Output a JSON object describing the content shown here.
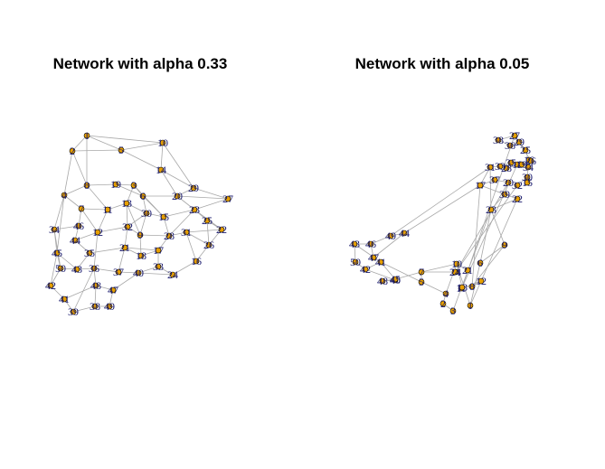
{
  "panels": [
    {
      "title": "Network with alpha 0.33",
      "nodes": [
        {
          "id": "1"
        },
        {
          "id": "2"
        },
        {
          "id": "3"
        },
        {
          "id": "4"
        },
        {
          "id": "5"
        },
        {
          "id": "6"
        },
        {
          "id": "7"
        },
        {
          "id": "8"
        },
        {
          "id": "9"
        },
        {
          "id": "10"
        },
        {
          "id": "11"
        },
        {
          "id": "12"
        },
        {
          "id": "13"
        },
        {
          "id": "14"
        },
        {
          "id": "15"
        },
        {
          "id": "16"
        },
        {
          "id": "17"
        },
        {
          "id": "18"
        },
        {
          "id": "19"
        },
        {
          "id": "20"
        },
        {
          "id": "21"
        },
        {
          "id": "22"
        },
        {
          "id": "23"
        },
        {
          "id": "24"
        },
        {
          "id": "25"
        },
        {
          "id": "26"
        },
        {
          "id": "27"
        },
        {
          "id": "28"
        },
        {
          "id": "29"
        },
        {
          "id": "30"
        },
        {
          "id": "31"
        },
        {
          "id": "32"
        },
        {
          "id": "33"
        },
        {
          "id": "34"
        },
        {
          "id": "35"
        },
        {
          "id": "36"
        },
        {
          "id": "37"
        },
        {
          "id": "38"
        },
        {
          "id": "39"
        },
        {
          "id": "40"
        },
        {
          "id": "41"
        },
        {
          "id": "42"
        },
        {
          "id": "43"
        },
        {
          "id": "44"
        },
        {
          "id": "45"
        },
        {
          "id": "46"
        },
        {
          "id": "47"
        },
        {
          "id": "48"
        },
        {
          "id": "49"
        },
        {
          "id": "50"
        }
      ],
      "edges": [
        [
          "1",
          "2"
        ],
        [
          "1",
          "5"
        ],
        [
          "1",
          "8"
        ],
        [
          "1",
          "10"
        ],
        [
          "2",
          "4"
        ],
        [
          "2",
          "5"
        ],
        [
          "5",
          "10"
        ],
        [
          "5",
          "14"
        ],
        [
          "10",
          "14"
        ],
        [
          "14",
          "29"
        ],
        [
          "10",
          "29"
        ],
        [
          "14",
          "20"
        ],
        [
          "4",
          "8"
        ],
        [
          "4",
          "7"
        ],
        [
          "4",
          "34"
        ],
        [
          "8",
          "19"
        ],
        [
          "8",
          "11"
        ],
        [
          "19",
          "3"
        ],
        [
          "3",
          "6"
        ],
        [
          "3",
          "13"
        ],
        [
          "6",
          "20"
        ],
        [
          "20",
          "29"
        ],
        [
          "20",
          "27"
        ],
        [
          "29",
          "27"
        ],
        [
          "27",
          "23"
        ],
        [
          "23",
          "22"
        ],
        [
          "23",
          "25"
        ],
        [
          "25",
          "22"
        ],
        [
          "25",
          "26"
        ],
        [
          "22",
          "26"
        ],
        [
          "6",
          "30"
        ],
        [
          "13",
          "30"
        ],
        [
          "30",
          "15"
        ],
        [
          "15",
          "23"
        ],
        [
          "15",
          "28"
        ],
        [
          "28",
          "31"
        ],
        [
          "31",
          "26"
        ],
        [
          "31",
          "16"
        ],
        [
          "16",
          "24"
        ],
        [
          "24",
          "33"
        ],
        [
          "33",
          "17"
        ],
        [
          "17",
          "18"
        ],
        [
          "18",
          "9"
        ],
        [
          "9",
          "32"
        ],
        [
          "32",
          "13"
        ],
        [
          "32",
          "21"
        ],
        [
          "21",
          "35"
        ],
        [
          "35",
          "43"
        ],
        [
          "43",
          "50"
        ],
        [
          "50",
          "45"
        ],
        [
          "45",
          "34"
        ],
        [
          "34",
          "46"
        ],
        [
          "46",
          "44"
        ],
        [
          "44",
          "12"
        ],
        [
          "12",
          "11"
        ],
        [
          "11",
          "7"
        ],
        [
          "7",
          "46"
        ],
        [
          "12",
          "32"
        ],
        [
          "21",
          "37"
        ],
        [
          "37",
          "36"
        ],
        [
          "36",
          "43"
        ],
        [
          "37",
          "40"
        ],
        [
          "40",
          "33"
        ],
        [
          "40",
          "47"
        ],
        [
          "47",
          "48"
        ],
        [
          "48",
          "38"
        ],
        [
          "38",
          "49"
        ],
        [
          "38",
          "39"
        ],
        [
          "39",
          "41"
        ],
        [
          "41",
          "42"
        ],
        [
          "42",
          "50"
        ],
        [
          "41",
          "48"
        ],
        [
          "36",
          "48"
        ],
        [
          "49",
          "47"
        ],
        [
          "12",
          "36"
        ],
        [
          "35",
          "44"
        ],
        [
          "9",
          "30"
        ],
        [
          "18",
          "21"
        ],
        [
          "17",
          "28"
        ],
        [
          "16",
          "26"
        ],
        [
          "24",
          "40"
        ],
        [
          "3",
          "15"
        ],
        [
          "19",
          "6"
        ],
        [
          "13",
          "9"
        ],
        [
          "7",
          "12"
        ],
        [
          "45",
          "43"
        ],
        [
          "42",
          "45"
        ],
        [
          "39",
          "36"
        ],
        [
          "11",
          "13"
        ],
        [
          "28",
          "23"
        ],
        [
          "31",
          "22"
        ],
        [
          "6",
          "15"
        ],
        [
          "20",
          "23"
        ],
        [
          "2",
          "8"
        ],
        [
          "4",
          "45"
        ],
        [
          "34",
          "50"
        ],
        [
          "44",
          "35"
        ],
        [
          "21",
          "17"
        ],
        [
          "32",
          "30"
        ],
        [
          "9",
          "28"
        ]
      ]
    },
    {
      "title": "Network with alpha 0.05",
      "nodes": [
        {
          "id": "1"
        },
        {
          "id": "2"
        },
        {
          "id": "3"
        },
        {
          "id": "4"
        },
        {
          "id": "5"
        },
        {
          "id": "6"
        },
        {
          "id": "7"
        },
        {
          "id": "8"
        },
        {
          "id": "9"
        },
        {
          "id": "10"
        },
        {
          "id": "11"
        },
        {
          "id": "12"
        },
        {
          "id": "13"
        },
        {
          "id": "14"
        },
        {
          "id": "15"
        },
        {
          "id": "16"
        },
        {
          "id": "17"
        },
        {
          "id": "18"
        },
        {
          "id": "19"
        },
        {
          "id": "20"
        },
        {
          "id": "21"
        },
        {
          "id": "22"
        },
        {
          "id": "23"
        },
        {
          "id": "24"
        },
        {
          "id": "25"
        },
        {
          "id": "26"
        },
        {
          "id": "27"
        },
        {
          "id": "28"
        },
        {
          "id": "29"
        },
        {
          "id": "30"
        },
        {
          "id": "31"
        },
        {
          "id": "32"
        },
        {
          "id": "33"
        },
        {
          "id": "34"
        },
        {
          "id": "35"
        },
        {
          "id": "36"
        },
        {
          "id": "37"
        },
        {
          "id": "38"
        },
        {
          "id": "39"
        },
        {
          "id": "40"
        },
        {
          "id": "41"
        },
        {
          "id": "42"
        },
        {
          "id": "43"
        },
        {
          "id": "44"
        },
        {
          "id": "45"
        },
        {
          "id": "46"
        },
        {
          "id": "47"
        },
        {
          "id": "48"
        },
        {
          "id": "49"
        },
        {
          "id": "50"
        }
      ],
      "edges": [
        [
          "27",
          "38"
        ],
        [
          "27",
          "26"
        ],
        [
          "38",
          "36"
        ],
        [
          "36",
          "29"
        ],
        [
          "29",
          "25"
        ],
        [
          "25",
          "16"
        ],
        [
          "16",
          "34"
        ],
        [
          "34",
          "30"
        ],
        [
          "30",
          "32"
        ],
        [
          "32",
          "14"
        ],
        [
          "14",
          "20"
        ],
        [
          "20",
          "37"
        ],
        [
          "37",
          "17"
        ],
        [
          "17",
          "31"
        ],
        [
          "31",
          "33"
        ],
        [
          "33",
          "35"
        ],
        [
          "35",
          "28"
        ],
        [
          "28",
          "19"
        ],
        [
          "19",
          "18"
        ],
        [
          "18",
          "13"
        ],
        [
          "13",
          "27"
        ],
        [
          "39",
          "22"
        ],
        [
          "39",
          "23"
        ],
        [
          "22",
          "23"
        ],
        [
          "17",
          "39"
        ],
        [
          "20",
          "39"
        ],
        [
          "23",
          "9"
        ],
        [
          "9",
          "6"
        ],
        [
          "6",
          "1"
        ],
        [
          "1",
          "12"
        ],
        [
          "12",
          "8"
        ],
        [
          "8",
          "13"
        ],
        [
          "13",
          "11"
        ],
        [
          "11",
          "12"
        ],
        [
          "10",
          "1"
        ],
        [
          "10",
          "4"
        ],
        [
          "4",
          "2"
        ],
        [
          "2",
          "3"
        ],
        [
          "3",
          "11"
        ],
        [
          "5",
          "7"
        ],
        [
          "7",
          "45"
        ],
        [
          "45",
          "48"
        ],
        [
          "48",
          "40"
        ],
        [
          "40",
          "42"
        ],
        [
          "42",
          "50"
        ],
        [
          "50",
          "43"
        ],
        [
          "43",
          "46"
        ],
        [
          "46",
          "49"
        ],
        [
          "49",
          "44"
        ],
        [
          "44",
          "47"
        ],
        [
          "47",
          "41"
        ],
        [
          "41",
          "42"
        ],
        [
          "41",
          "5"
        ],
        [
          "7",
          "10"
        ],
        [
          "44",
          "17"
        ],
        [
          "49",
          "31"
        ],
        [
          "23",
          "6"
        ],
        [
          "22",
          "12"
        ],
        [
          "9",
          "8"
        ],
        [
          "23",
          "11"
        ],
        [
          "10",
          "13"
        ],
        [
          "14",
          "7"
        ],
        [
          "46",
          "47"
        ],
        [
          "43",
          "41"
        ],
        [
          "45",
          "41"
        ],
        [
          "5",
          "4"
        ],
        [
          "17",
          "8"
        ],
        [
          "31",
          "23"
        ],
        [
          "24",
          "14"
        ],
        [
          "21",
          "10"
        ]
      ]
    }
  ]
}
